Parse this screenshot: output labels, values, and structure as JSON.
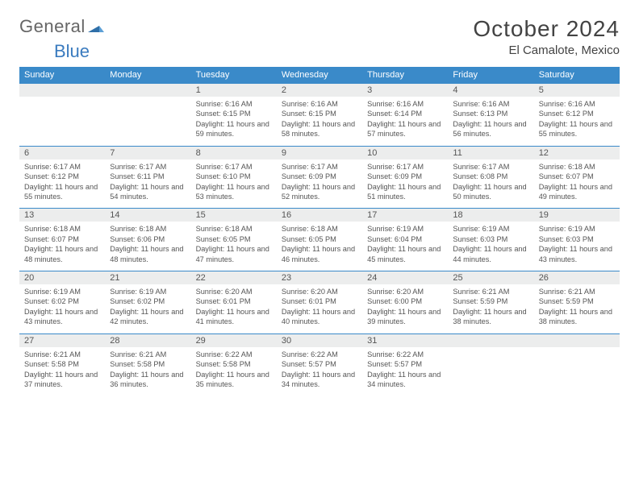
{
  "logo": {
    "general": "General",
    "blue": "Blue"
  },
  "title": "October 2024",
  "location": "El Camalote, Mexico",
  "colors": {
    "header_bg": "#3a8ac9",
    "header_text": "#ffffff",
    "daynum_bg": "#eceded",
    "border": "#3a8ac9",
    "text": "#555555",
    "logo_blue": "#3a7bbf"
  },
  "weekdays": [
    "Sunday",
    "Monday",
    "Tuesday",
    "Wednesday",
    "Thursday",
    "Friday",
    "Saturday"
  ],
  "weeks": [
    [
      {
        "n": "",
        "sr": "",
        "ss": "",
        "dl": ""
      },
      {
        "n": "",
        "sr": "",
        "ss": "",
        "dl": ""
      },
      {
        "n": "1",
        "sr": "Sunrise: 6:16 AM",
        "ss": "Sunset: 6:15 PM",
        "dl": "Daylight: 11 hours and 59 minutes."
      },
      {
        "n": "2",
        "sr": "Sunrise: 6:16 AM",
        "ss": "Sunset: 6:15 PM",
        "dl": "Daylight: 11 hours and 58 minutes."
      },
      {
        "n": "3",
        "sr": "Sunrise: 6:16 AM",
        "ss": "Sunset: 6:14 PM",
        "dl": "Daylight: 11 hours and 57 minutes."
      },
      {
        "n": "4",
        "sr": "Sunrise: 6:16 AM",
        "ss": "Sunset: 6:13 PM",
        "dl": "Daylight: 11 hours and 56 minutes."
      },
      {
        "n": "5",
        "sr": "Sunrise: 6:16 AM",
        "ss": "Sunset: 6:12 PM",
        "dl": "Daylight: 11 hours and 55 minutes."
      }
    ],
    [
      {
        "n": "6",
        "sr": "Sunrise: 6:17 AM",
        "ss": "Sunset: 6:12 PM",
        "dl": "Daylight: 11 hours and 55 minutes."
      },
      {
        "n": "7",
        "sr": "Sunrise: 6:17 AM",
        "ss": "Sunset: 6:11 PM",
        "dl": "Daylight: 11 hours and 54 minutes."
      },
      {
        "n": "8",
        "sr": "Sunrise: 6:17 AM",
        "ss": "Sunset: 6:10 PM",
        "dl": "Daylight: 11 hours and 53 minutes."
      },
      {
        "n": "9",
        "sr": "Sunrise: 6:17 AM",
        "ss": "Sunset: 6:09 PM",
        "dl": "Daylight: 11 hours and 52 minutes."
      },
      {
        "n": "10",
        "sr": "Sunrise: 6:17 AM",
        "ss": "Sunset: 6:09 PM",
        "dl": "Daylight: 11 hours and 51 minutes."
      },
      {
        "n": "11",
        "sr": "Sunrise: 6:17 AM",
        "ss": "Sunset: 6:08 PM",
        "dl": "Daylight: 11 hours and 50 minutes."
      },
      {
        "n": "12",
        "sr": "Sunrise: 6:18 AM",
        "ss": "Sunset: 6:07 PM",
        "dl": "Daylight: 11 hours and 49 minutes."
      }
    ],
    [
      {
        "n": "13",
        "sr": "Sunrise: 6:18 AM",
        "ss": "Sunset: 6:07 PM",
        "dl": "Daylight: 11 hours and 48 minutes."
      },
      {
        "n": "14",
        "sr": "Sunrise: 6:18 AM",
        "ss": "Sunset: 6:06 PM",
        "dl": "Daylight: 11 hours and 48 minutes."
      },
      {
        "n": "15",
        "sr": "Sunrise: 6:18 AM",
        "ss": "Sunset: 6:05 PM",
        "dl": "Daylight: 11 hours and 47 minutes."
      },
      {
        "n": "16",
        "sr": "Sunrise: 6:18 AM",
        "ss": "Sunset: 6:05 PM",
        "dl": "Daylight: 11 hours and 46 minutes."
      },
      {
        "n": "17",
        "sr": "Sunrise: 6:19 AM",
        "ss": "Sunset: 6:04 PM",
        "dl": "Daylight: 11 hours and 45 minutes."
      },
      {
        "n": "18",
        "sr": "Sunrise: 6:19 AM",
        "ss": "Sunset: 6:03 PM",
        "dl": "Daylight: 11 hours and 44 minutes."
      },
      {
        "n": "19",
        "sr": "Sunrise: 6:19 AM",
        "ss": "Sunset: 6:03 PM",
        "dl": "Daylight: 11 hours and 43 minutes."
      }
    ],
    [
      {
        "n": "20",
        "sr": "Sunrise: 6:19 AM",
        "ss": "Sunset: 6:02 PM",
        "dl": "Daylight: 11 hours and 43 minutes."
      },
      {
        "n": "21",
        "sr": "Sunrise: 6:19 AM",
        "ss": "Sunset: 6:02 PM",
        "dl": "Daylight: 11 hours and 42 minutes."
      },
      {
        "n": "22",
        "sr": "Sunrise: 6:20 AM",
        "ss": "Sunset: 6:01 PM",
        "dl": "Daylight: 11 hours and 41 minutes."
      },
      {
        "n": "23",
        "sr": "Sunrise: 6:20 AM",
        "ss": "Sunset: 6:01 PM",
        "dl": "Daylight: 11 hours and 40 minutes."
      },
      {
        "n": "24",
        "sr": "Sunrise: 6:20 AM",
        "ss": "Sunset: 6:00 PM",
        "dl": "Daylight: 11 hours and 39 minutes."
      },
      {
        "n": "25",
        "sr": "Sunrise: 6:21 AM",
        "ss": "Sunset: 5:59 PM",
        "dl": "Daylight: 11 hours and 38 minutes."
      },
      {
        "n": "26",
        "sr": "Sunrise: 6:21 AM",
        "ss": "Sunset: 5:59 PM",
        "dl": "Daylight: 11 hours and 38 minutes."
      }
    ],
    [
      {
        "n": "27",
        "sr": "Sunrise: 6:21 AM",
        "ss": "Sunset: 5:58 PM",
        "dl": "Daylight: 11 hours and 37 minutes."
      },
      {
        "n": "28",
        "sr": "Sunrise: 6:21 AM",
        "ss": "Sunset: 5:58 PM",
        "dl": "Daylight: 11 hours and 36 minutes."
      },
      {
        "n": "29",
        "sr": "Sunrise: 6:22 AM",
        "ss": "Sunset: 5:58 PM",
        "dl": "Daylight: 11 hours and 35 minutes."
      },
      {
        "n": "30",
        "sr": "Sunrise: 6:22 AM",
        "ss": "Sunset: 5:57 PM",
        "dl": "Daylight: 11 hours and 34 minutes."
      },
      {
        "n": "31",
        "sr": "Sunrise: 6:22 AM",
        "ss": "Sunset: 5:57 PM",
        "dl": "Daylight: 11 hours and 34 minutes."
      },
      {
        "n": "",
        "sr": "",
        "ss": "",
        "dl": ""
      },
      {
        "n": "",
        "sr": "",
        "ss": "",
        "dl": ""
      }
    ]
  ]
}
